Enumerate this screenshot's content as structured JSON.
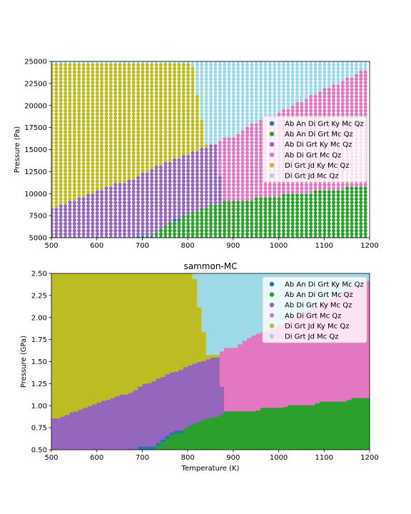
{
  "colors": {
    "Ab An Di Grt Ky Mc Qz": "#1f77b4",
    "Ab An Di Grt Mc Qz": "#2ca02c",
    "Ab Di Grt Ky Mc Qz": "#9467bd",
    "Ab Di Grt Mc Qz": "#e377c2",
    "Di Grt Jd Ky Mc Qz": "#bcbd22",
    "Di Grt Jd Mc Qz": "#9edae5"
  },
  "chart_data": [
    {
      "type": "scatter",
      "title": "",
      "xlabel": "",
      "ylabel": "Pressure (Pa)",
      "xlim": [
        500,
        1200
      ],
      "ylim": [
        5000,
        25000
      ],
      "x_ticks": [
        "500",
        "600",
        "700",
        "800",
        "900",
        "1000",
        "1100",
        "1200"
      ],
      "y_ticks": [
        "5000",
        "7500",
        "10000",
        "12500",
        "15000",
        "17500",
        "20000",
        "22500",
        "25000"
      ],
      "legend_position": "center-right",
      "legend": [
        "Ab An Di Grt Ky Mc Qz",
        "Ab An Di Grt Mc Qz",
        "Ab Di Grt Ky Mc Qz",
        "Ab Di Grt Mc Qz",
        "Di Grt Jd Ky Mc Qz",
        "Di Grt Jd Mc Qz"
      ],
      "grid": false
    },
    {
      "type": "heatmap",
      "title": "sammon-MC",
      "xlabel": "Temperature (K)",
      "ylabel": "Pressure (GPa)",
      "xlim": [
        500,
        1200
      ],
      "ylim": [
        0.5,
        2.5
      ],
      "x_ticks": [
        "500",
        "600",
        "700",
        "800",
        "900",
        "1000",
        "1100",
        "1200"
      ],
      "y_ticks": [
        "0.50",
        "0.75",
        "1.00",
        "1.25",
        "1.50",
        "1.75",
        "2.00",
        "2.25",
        "2.50"
      ],
      "legend_position": "top-right",
      "legend": [
        "Ab An Di Grt Ky Mc Qz",
        "Ab An Di Grt Mc Qz",
        "Ab Di Grt Ky Mc Qz",
        "Ab Di Grt Mc Qz",
        "Di Grt Jd Ky Mc Qz",
        "Di Grt Jd Mc Qz"
      ],
      "grid": false
    }
  ],
  "phase_boundaries": {
    "T": [
      500,
      510,
      520,
      530,
      540,
      550,
      560,
      570,
      580,
      590,
      600,
      610,
      620,
      630,
      640,
      650,
      660,
      670,
      680,
      690,
      700,
      710,
      720,
      730,
      740,
      750,
      760,
      770,
      780,
      790,
      800,
      810,
      820,
      830,
      840,
      850,
      860,
      870,
      880,
      890,
      900,
      910,
      920,
      930,
      940,
      950,
      960,
      970,
      980,
      990,
      1000,
      1010,
      1020,
      1030,
      1040,
      1050,
      1060,
      1070,
      1080,
      1090,
      1100,
      1110,
      1120,
      1130,
      1140,
      1150,
      1160,
      1170,
      1180,
      1190
    ],
    "low_assemblage_upper_GPa": [
      0.5,
      0.5,
      0.5,
      0.5,
      0.5,
      0.5,
      0.5,
      0.5,
      0.5,
      0.5,
      0.5,
      0.5,
      0.5,
      0.5,
      0.5,
      0.5,
      0.5,
      0.5,
      0.5,
      0.54,
      0.54,
      0.54,
      0.54,
      0.58,
      0.62,
      0.66,
      0.7,
      0.72,
      0.72,
      0.75,
      0.78,
      0.8,
      0.82,
      0.84,
      0.86,
      0.87,
      0.88,
      0.9,
      0.94,
      0.94,
      0.94,
      0.94,
      0.94,
      0.94,
      0.94,
      0.95,
      0.98,
      0.98,
      0.98,
      0.98,
      0.98,
      0.99,
      1.01,
      1.01,
      1.01,
      1.01,
      1.01,
      1.01,
      1.03,
      1.05,
      1.05,
      1.05,
      1.05,
      1.05,
      1.05,
      1.07,
      1.09,
      1.09,
      1.09,
      1.09
    ],
    "ky_field_upper_GPa": [
      0.86,
      0.86,
      0.88,
      0.9,
      0.93,
      0.94,
      0.96,
      0.98,
      1.0,
      1.02,
      1.04,
      1.06,
      1.07,
      1.09,
      1.11,
      1.13,
      1.13,
      1.15,
      1.18,
      1.22,
      1.25,
      1.26,
      1.28,
      1.31,
      1.33,
      1.36,
      1.38,
      1.39,
      1.41,
      1.44,
      1.46,
      1.48,
      1.5,
      1.51,
      1.53,
      1.55,
      1.55,
      1.22,
      0.9,
      null,
      null,
      null,
      null,
      null,
      null,
      null,
      null,
      null,
      null,
      null,
      null,
      null,
      null,
      null,
      null,
      null,
      null,
      null,
      null,
      null,
      null,
      null,
      null,
      null,
      null,
      null,
      null,
      null,
      null,
      null
    ],
    "jd_ky_field_upper_GPa": [
      2.5,
      2.5,
      2.5,
      2.5,
      2.5,
      2.5,
      2.5,
      2.5,
      2.5,
      2.5,
      2.5,
      2.5,
      2.5,
      2.5,
      2.5,
      2.5,
      2.5,
      2.5,
      2.5,
      2.5,
      2.5,
      2.5,
      2.5,
      2.5,
      2.5,
      2.5,
      2.5,
      2.5,
      2.5,
      2.5,
      2.5,
      2.44,
      2.12,
      1.84,
      1.58,
      1.58,
      1.58,
      null,
      null,
      null,
      null,
      null,
      null,
      null,
      null,
      null,
      null,
      null,
      null,
      null,
      null,
      null,
      null,
      null,
      null,
      null,
      null,
      null,
      null,
      null,
      null,
      null,
      null,
      null,
      null,
      null,
      null,
      null,
      null,
      null
    ],
    "mc_field_upper_GPa": [
      null,
      null,
      null,
      null,
      null,
      null,
      null,
      null,
      null,
      null,
      null,
      null,
      null,
      null,
      null,
      null,
      null,
      null,
      null,
      null,
      null,
      null,
      null,
      null,
      null,
      null,
      null,
      null,
      null,
      null,
      null,
      null,
      null,
      null,
      null,
      null,
      null,
      1.62,
      1.66,
      1.66,
      1.66,
      1.7,
      1.74,
      1.77,
      1.8,
      1.82,
      1.84,
      1.85,
      1.87,
      1.9,
      1.93,
      1.95,
      1.98,
      2.0,
      2.04,
      2.06,
      2.08,
      2.11,
      2.14,
      2.17,
      2.19,
      2.22,
      2.24,
      2.26,
      2.29,
      2.31,
      2.34,
      2.36,
      2.39,
      2.42
    ]
  },
  "legend_entries": [
    {
      "label": "Ab An Di Grt Ky Mc Qz",
      "color": "#1f77b4"
    },
    {
      "label": "Ab An Di Grt Mc Qz",
      "color": "#2ca02c"
    },
    {
      "label": "Ab Di Grt Ky Mc Qz",
      "color": "#9467bd"
    },
    {
      "label": "Ab Di Grt Mc Qz",
      "color": "#e377c2"
    },
    {
      "label": "Di Grt Jd Ky Mc Qz",
      "color": "#bcbd22"
    },
    {
      "label": "Di Grt Jd Mc Qz",
      "color": "#9edae5"
    }
  ]
}
